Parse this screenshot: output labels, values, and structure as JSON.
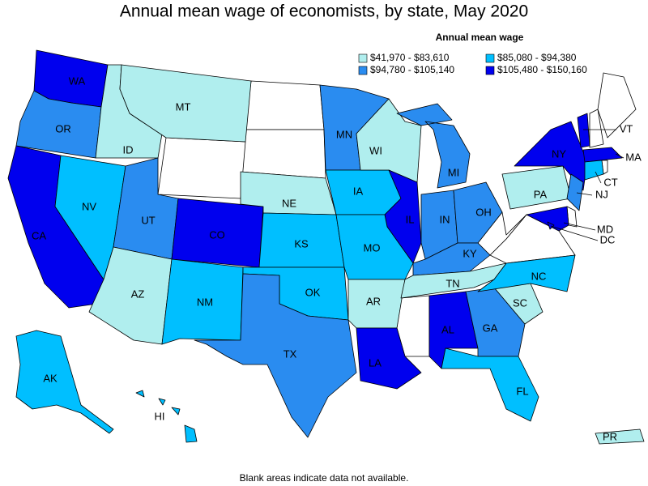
{
  "title": "Annual mean wage of economists, by state, May 2020",
  "legend": {
    "title": "Annual mean wage",
    "classes": [
      {
        "label": "$41,970 - $83,610",
        "color": "#b0eeee"
      },
      {
        "label": "$85,080 - $94,380",
        "color": "#00bfff"
      },
      {
        "label": "$94,780 - $105,140",
        "color": "#2a8cf0"
      },
      {
        "label": "$105,480 - $150,160",
        "color": "#0000ee"
      }
    ]
  },
  "states": [
    {
      "abbr": "WA",
      "class": 3
    },
    {
      "abbr": "OR",
      "class": 2
    },
    {
      "abbr": "CA",
      "class": 3
    },
    {
      "abbr": "NV",
      "class": 1
    },
    {
      "abbr": "ID",
      "class": 0
    },
    {
      "abbr": "MT",
      "class": 0
    },
    {
      "abbr": "UT",
      "class": 2
    },
    {
      "abbr": "AZ",
      "class": 0
    },
    {
      "abbr": "CO",
      "class": 3
    },
    {
      "abbr": "NM",
      "class": 1
    },
    {
      "abbr": "NE",
      "class": 0
    },
    {
      "abbr": "KS",
      "class": 1
    },
    {
      "abbr": "OK",
      "class": 1
    },
    {
      "abbr": "TX",
      "class": 2
    },
    {
      "abbr": "MN",
      "class": 2
    },
    {
      "abbr": "IA",
      "class": 1
    },
    {
      "abbr": "WI",
      "class": 0
    },
    {
      "abbr": "IL",
      "class": 3
    },
    {
      "abbr": "MO",
      "class": 1
    },
    {
      "abbr": "AR",
      "class": 0
    },
    {
      "abbr": "LA",
      "class": 3
    },
    {
      "abbr": "MI",
      "class": 2
    },
    {
      "abbr": "IN",
      "class": 2
    },
    {
      "abbr": "OH",
      "class": 2
    },
    {
      "abbr": "KY",
      "class": 2
    },
    {
      "abbr": "TN",
      "class": 0
    },
    {
      "abbr": "AL",
      "class": 3
    },
    {
      "abbr": "GA",
      "class": 2
    },
    {
      "abbr": "FL",
      "class": 1
    },
    {
      "abbr": "SC",
      "class": 0
    },
    {
      "abbr": "NC",
      "class": 1
    },
    {
      "abbr": "PA",
      "class": 0
    },
    {
      "abbr": "NY",
      "class": 3
    },
    {
      "abbr": "VT",
      "class": 3
    },
    {
      "abbr": "MA",
      "class": 3
    },
    {
      "abbr": "CT",
      "class": 1
    },
    {
      "abbr": "NJ",
      "class": 2
    },
    {
      "abbr": "MD",
      "class": 3
    },
    {
      "abbr": "DC",
      "class": 3
    },
    {
      "abbr": "AK",
      "class": 1
    },
    {
      "abbr": "HI",
      "class": 1
    },
    {
      "abbr": "PR",
      "class": 0
    }
  ],
  "footnote": "Blank areas indicate data not available."
}
